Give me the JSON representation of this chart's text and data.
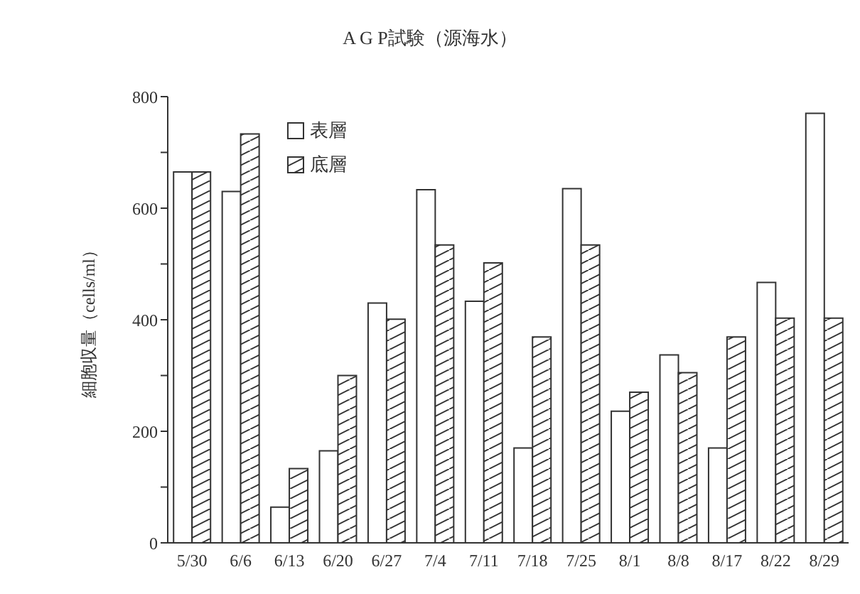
{
  "chart_data": {
    "type": "bar",
    "title": "A G P試験（源海水）",
    "ylabel": "細胞収量（cells/ml）",
    "categories": [
      "5/30",
      "6/6",
      "6/13",
      "6/20",
      "6/27",
      "7/4",
      "7/11",
      "7/18",
      "7/25",
      "8/1",
      "8/8",
      "8/17",
      "8/22",
      "8/29"
    ],
    "series": [
      {
        "name": "表層",
        "color": "#ffffff",
        "values": [
          665,
          630,
          64,
          165,
          430,
          633,
          433,
          170,
          635,
          236,
          337,
          170,
          467,
          770
        ]
      },
      {
        "name": "底層",
        "color": "#333333",
        "values": [
          665,
          733,
          133,
          300,
          401,
          534,
          502,
          369,
          534,
          270,
          305,
          369,
          403,
          403
        ]
      }
    ],
    "ylim": [
      0,
      800
    ],
    "yticks": [
      0,
      {
        "value": 100,
        "label": null
      },
      200,
      {
        "value": 300,
        "label": null
      },
      400,
      {
        "value": 500,
        "label": null
      },
      600,
      {
        "value": 700,
        "label": null
      },
      800
    ],
    "grid": false,
    "legend": "top left"
  }
}
